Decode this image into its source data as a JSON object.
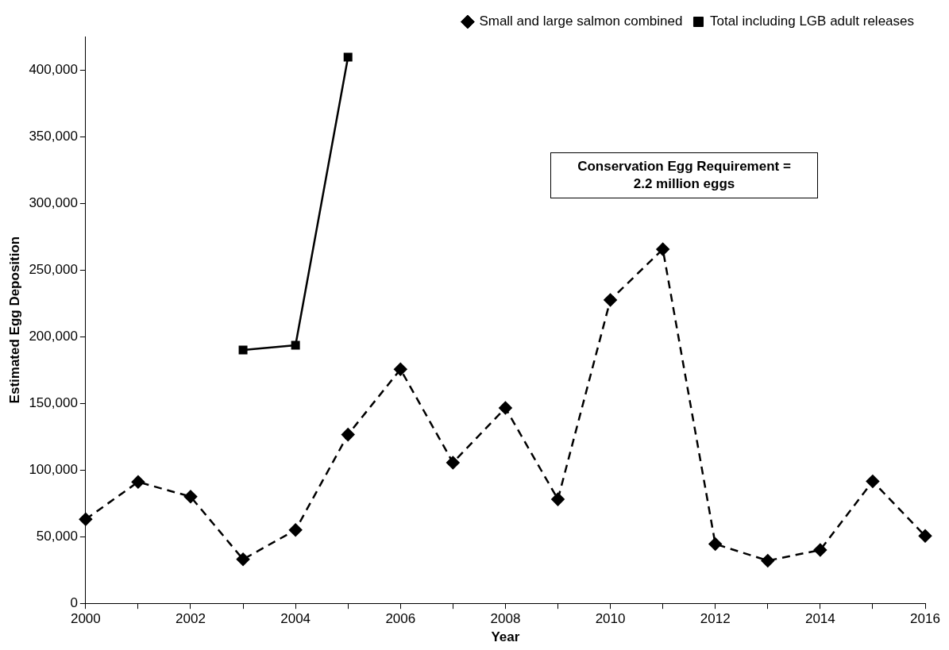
{
  "chart_data": {
    "type": "line",
    "xlabel": "Year",
    "ylabel": "Estimated Egg Deposition",
    "series": [
      {
        "name": "Small and large salmon combined",
        "color": "#000000",
        "marker": "diamond",
        "line_style": "dashed",
        "x": [
          2000,
          2001,
          2002,
          2003,
          2004,
          2005,
          2006,
          2007,
          2008,
          2009,
          2010,
          2011,
          2012,
          2013,
          2014,
          2015,
          2016
        ],
        "values": [
          63000,
          91000,
          80000,
          33000,
          55000,
          126500,
          175500,
          105500,
          146500,
          78000,
          227500,
          265500,
          44500,
          32000,
          40000,
          91500,
          50500
        ]
      },
      {
        "name": "Total including LGB adult releases",
        "color": "#000000",
        "marker": "square",
        "line_style": "solid",
        "x": [
          2003,
          2004,
          2005
        ],
        "values": [
          190000,
          193500,
          409500
        ]
      }
    ],
    "xlim": [
      2000,
      2016
    ],
    "xticks": [
      2000,
      {
        "value": 2001,
        "label": null
      },
      2002,
      {
        "value": 2003,
        "label": null
      },
      2004,
      {
        "value": 2005,
        "label": null
      },
      2006,
      {
        "value": 2007,
        "label": null
      },
      2008,
      {
        "value": 2009,
        "label": null
      },
      2010,
      {
        "value": 2011,
        "label": null
      },
      2012,
      {
        "value": 2013,
        "label": null
      },
      2014,
      {
        "value": 2015,
        "label": null
      },
      2016
    ],
    "ylim": [
      0,
      425000
    ],
    "yticks": [
      {
        "value": 0,
        "label": "0"
      },
      {
        "value": 50000,
        "label": "50,000"
      },
      {
        "value": 100000,
        "label": "100,000"
      },
      {
        "value": 150000,
        "label": "150,000"
      },
      {
        "value": 200000,
        "label": "200,000"
      },
      {
        "value": 250000,
        "label": "250,000"
      },
      {
        "value": 300000,
        "label": "300,000"
      },
      {
        "value": 350000,
        "label": "350,000"
      },
      {
        "value": 400000,
        "label": "400,000"
      }
    ],
    "grid": false,
    "legend": "top right",
    "annotations": [
      "Conservation Egg Requirement =\n2.2 million eggs"
    ]
  }
}
